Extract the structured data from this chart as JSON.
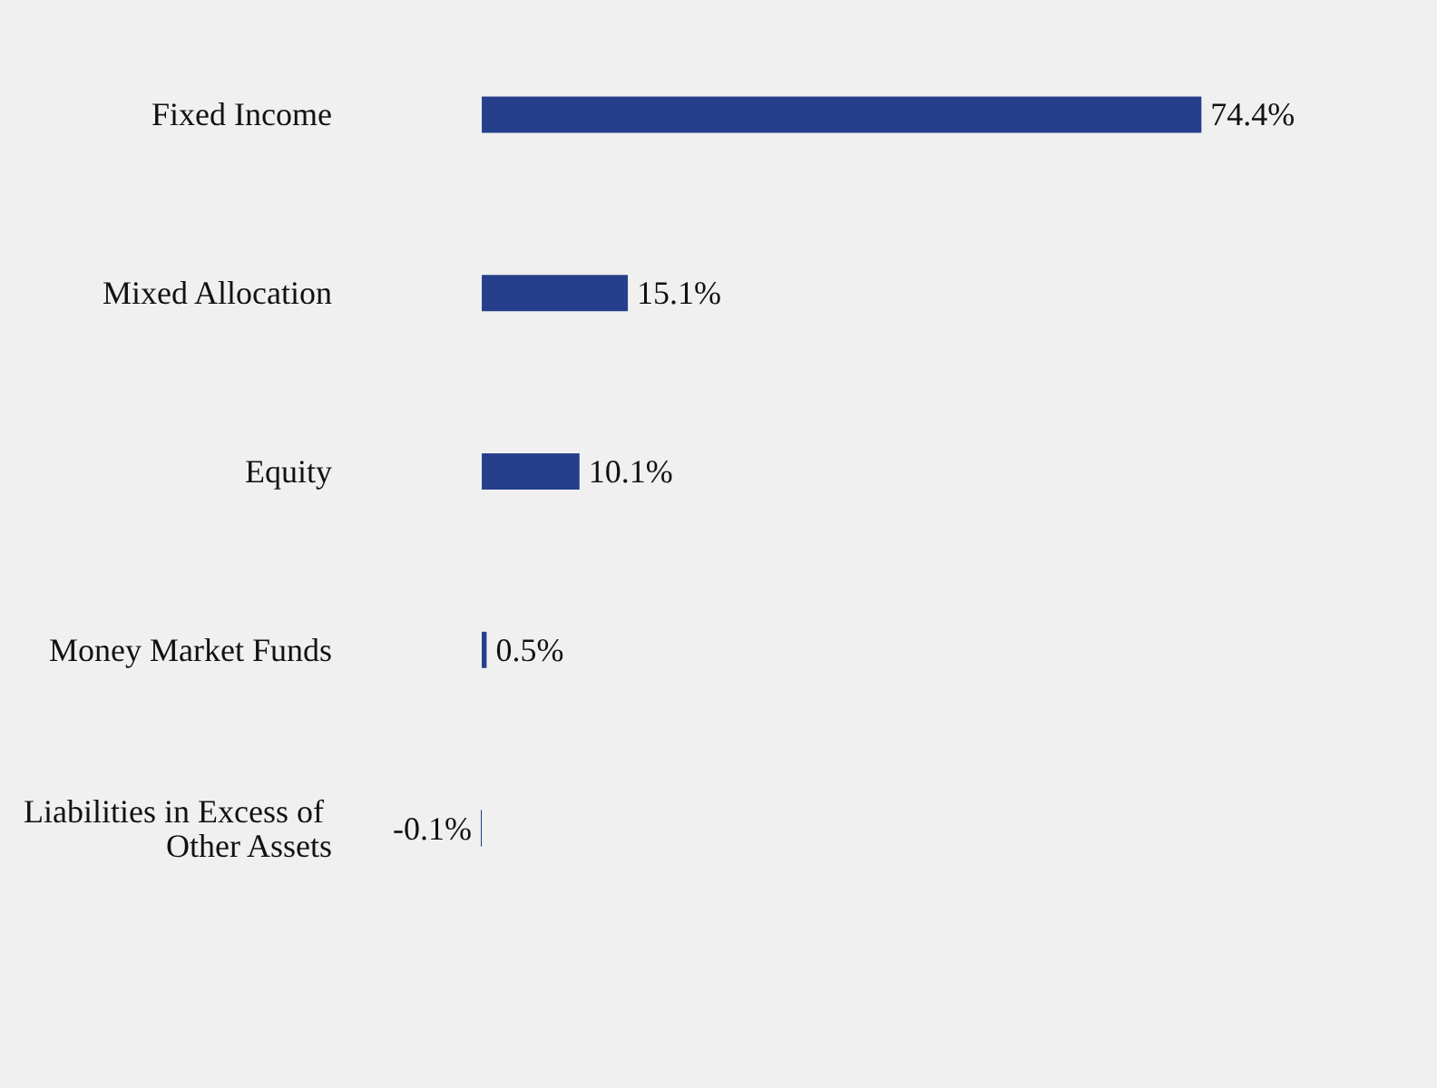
{
  "chart_data": {
    "type": "bar",
    "orientation": "horizontal",
    "categories": [
      "Fixed Income",
      "Mixed Allocation",
      "Equity",
      "Money Market Funds",
      "Liabilities in Excess of Other Assets"
    ],
    "values": [
      74.4,
      15.1,
      10.1,
      0.5,
      -0.1
    ],
    "value_labels": [
      "74.4%",
      "15.1%",
      "10.1%",
      "0.5%",
      "-0.1%"
    ],
    "color": "#253f8c"
  }
}
